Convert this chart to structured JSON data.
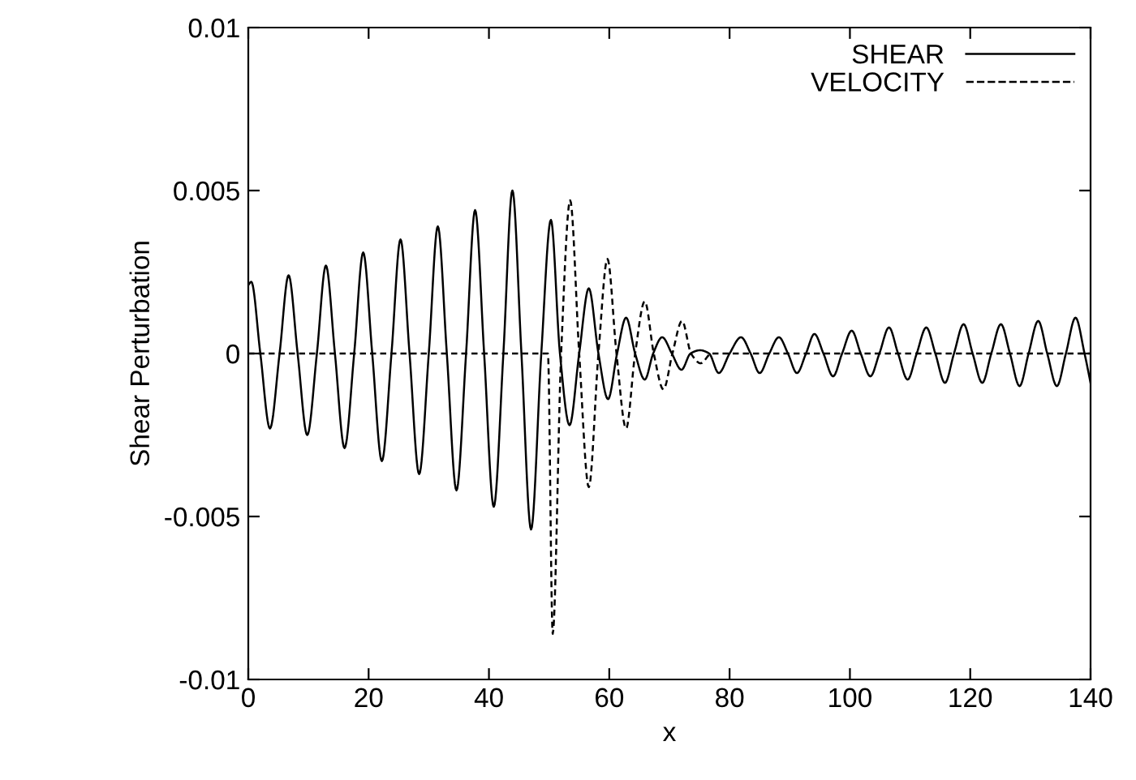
{
  "chart_data": {
    "type": "line",
    "xlabel": "x",
    "ylabel": "Shear Perturbation",
    "xlim": [
      0,
      140
    ],
    "xticks": [
      0,
      20,
      40,
      60,
      80,
      100,
      120,
      140
    ],
    "ylim": [
      -0.01,
      0.01
    ],
    "yticks": [
      -0.01,
      -0.005,
      0,
      0.005,
      0.01
    ],
    "grid": false,
    "legend": "top right",
    "marker": "none",
    "series": [
      {
        "name": "SHEAR",
        "color": "#000000",
        "line_style": "solid",
        "x": [
          0,
          0.5,
          2.0,
          3.6,
          5.2,
          6.7,
          8.2,
          9.8,
          11.4,
          12.9,
          14.4,
          16.0,
          17.6,
          19.1,
          20.6,
          22.2,
          23.8,
          25.3,
          26.8,
          28.4,
          30.0,
          31.5,
          33.0,
          34.6,
          36.2,
          37.7,
          39.2,
          40.8,
          42.4,
          43.9,
          45.4,
          47.0,
          48.7,
          50.3,
          51.8,
          53.4,
          55.0,
          56.6,
          58.2,
          59.8,
          61.3,
          62.8,
          64.3,
          65.9,
          67.3,
          68.8,
          70.4,
          72.0,
          73.5,
          75.1,
          76.6,
          78.2,
          80.0,
          81.9,
          83.5,
          85.0,
          86.6,
          88.2,
          89.7,
          91.2,
          92.7,
          94.1,
          95.6,
          97.2,
          98.7,
          100.3,
          101.8,
          103.4,
          104.9,
          106.5,
          108.0,
          109.6,
          111.1,
          112.7,
          114.2,
          115.8,
          117.3,
          118.9,
          120.4,
          122.0,
          123.5,
          125.1,
          126.6,
          128.2,
          129.7,
          131.3,
          132.8,
          134.4,
          135.9,
          137.5,
          139.0,
          140
        ],
        "values": [
          0.0021,
          0.0022,
          0,
          -0.0023,
          0,
          0.0024,
          0,
          -0.0025,
          0,
          0.0027,
          0,
          -0.0029,
          0,
          0.0031,
          0,
          -0.0033,
          0,
          0.0035,
          0,
          -0.0037,
          0,
          0.0039,
          0,
          -0.0042,
          0,
          0.0044,
          0,
          -0.0047,
          0,
          0.005,
          0,
          -0.0054,
          0,
          0.0041,
          0,
          -0.0022,
          0,
          0.002,
          0,
          -0.0014,
          0,
          0.0011,
          0,
          -0.0008,
          0,
          0.0005,
          0,
          -0.0005,
          0,
          0.0001,
          0,
          -0.0006,
          0,
          0.0005,
          0,
          -0.0006,
          0,
          0.0005,
          0,
          -0.0006,
          0,
          0.0006,
          0,
          -0.0007,
          0,
          0.0007,
          0,
          -0.0007,
          0,
          0.0008,
          0,
          -0.0008,
          0,
          0.0008,
          0,
          -0.0009,
          0,
          0.0009,
          0,
          -0.0009,
          0,
          0.0009,
          0,
          -0.001,
          0,
          0.001,
          0,
          -0.001,
          0,
          0.0011,
          0,
          -0.0009
        ]
      },
      {
        "name": "VELOCITY",
        "color": "#000000",
        "line_style": "dashed",
        "x": [
          0,
          49.8,
          50.6,
          52.0,
          53.5,
          55.0,
          56.6,
          58.2,
          59.7,
          61.2,
          62.8,
          64.3,
          65.9,
          67.4,
          69.0,
          70.5,
          72.1,
          73.6,
          75.2,
          77.0,
          140
        ],
        "values": [
          0,
          0,
          -0.0086,
          0,
          0.0047,
          0,
          -0.0041,
          0,
          0.0029,
          0,
          -0.0023,
          0,
          0.0016,
          0,
          -0.0011,
          0,
          0.001,
          0,
          -0.0003,
          0,
          0
        ]
      }
    ]
  }
}
